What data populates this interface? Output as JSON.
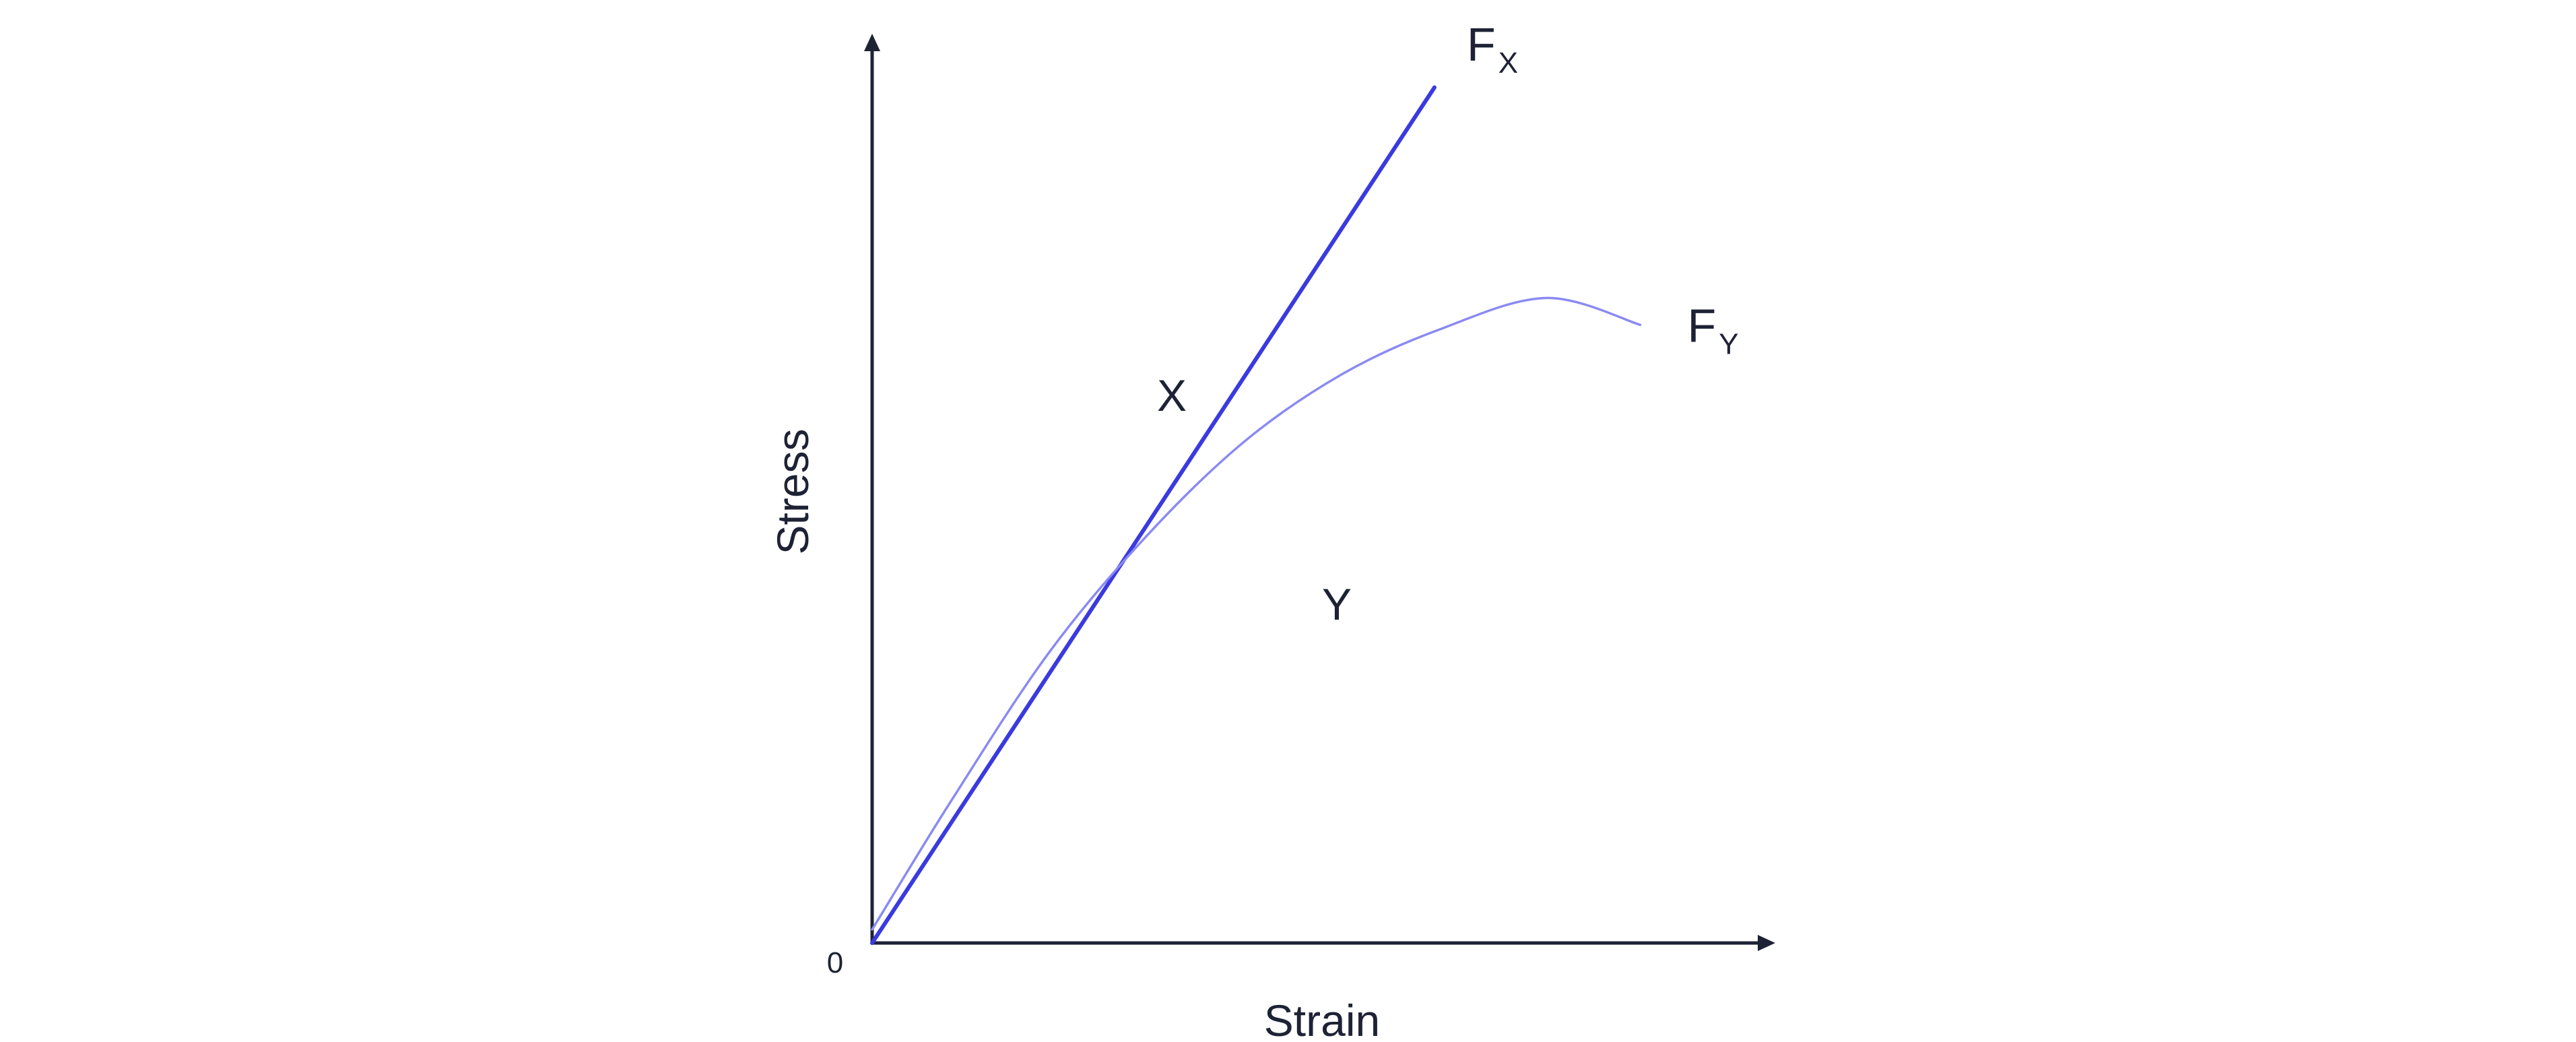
{
  "chart_data": {
    "type": "line",
    "title": "",
    "xlabel": "Strain",
    "ylabel": "Stress",
    "origin_label": "0",
    "xlim": [
      0,
      10
    ],
    "ylim": [
      0,
      10
    ],
    "grid": false,
    "ticks_numeric": false,
    "colors": {
      "axis": "#1e2235",
      "series_x": "#3a3ae0",
      "series_y": "#8a8af2"
    },
    "series": [
      {
        "name": "FX",
        "label_main": "F",
        "label_sub": "X",
        "region_label": "X",
        "color": "#3a3ae0",
        "x": [
          0.0,
          6.34
        ],
        "y": [
          0.0,
          9.55
        ]
      },
      {
        "name": "FY",
        "label_main": "F",
        "label_sub": "Y",
        "region_label": "Y",
        "color": "#8a8af2",
        "x": [
          0.0,
          0.9,
          2.0,
          3.1,
          4.2,
          5.3,
          6.4,
          7.6,
          8.66
        ],
        "y": [
          0.15,
          1.6,
          3.25,
          4.55,
          5.6,
          6.35,
          6.85,
          7.2,
          6.9
        ]
      }
    ]
  }
}
